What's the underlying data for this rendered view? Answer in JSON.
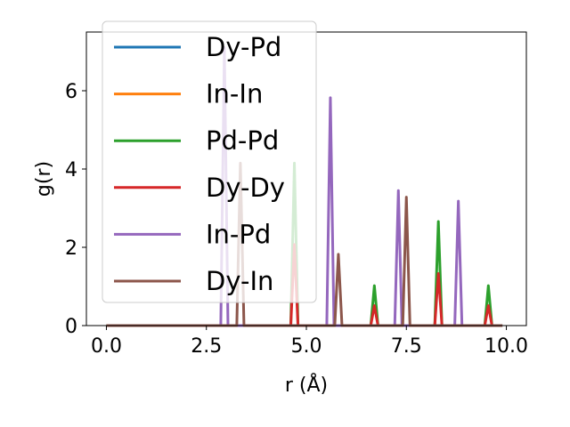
{
  "chart_data": {
    "type": "line",
    "title": "",
    "xlabel": "r (Å)",
    "ylabel": "g(r)",
    "xlim": [
      -0.5,
      10.5
    ],
    "ylim": [
      0,
      7.5
    ],
    "x_ticks": [
      {
        "value": 0.0,
        "label": "0.0"
      },
      {
        "value": 2.5,
        "label": "2.5"
      },
      {
        "value": 5.0,
        "label": "5.0"
      },
      {
        "value": 7.5,
        "label": "7.5"
      },
      {
        "value": 10.0,
        "label": "10.0"
      }
    ],
    "y_ticks": [
      {
        "value": 0,
        "label": "0"
      },
      {
        "value": 2,
        "label": "2"
      },
      {
        "value": 4,
        "label": "4"
      },
      {
        "value": 6,
        "label": "6"
      }
    ],
    "x_range": [
      0.0,
      9.9
    ],
    "peak_halfwidth": 0.09,
    "legend_position": "upper-left",
    "series": [
      {
        "name": "Dy-Pd",
        "color": "#1f77b4",
        "peaks": []
      },
      {
        "name": "In-In",
        "color": "#ff7f0e",
        "peaks": []
      },
      {
        "name": "Pd-Pd",
        "color": "#2ca02c",
        "peaks": [
          {
            "r": 4.7,
            "g": 4.15
          },
          {
            "r": 6.7,
            "g": 1.02
          },
          {
            "r": 8.3,
            "g": 2.66
          },
          {
            "r": 9.55,
            "g": 1.02
          }
        ]
      },
      {
        "name": "Dy-Dy",
        "color": "#d62728",
        "peaks": [
          {
            "r": 4.7,
            "g": 2.07
          },
          {
            "r": 6.7,
            "g": 0.51
          },
          {
            "r": 8.3,
            "g": 1.33
          },
          {
            "r": 9.55,
            "g": 0.51
          }
        ]
      },
      {
        "name": "In-Pd",
        "color": "#9467bd",
        "peaks": [
          {
            "r": 2.95,
            "g": 7.1
          },
          {
            "r": 5.6,
            "g": 5.82
          },
          {
            "r": 7.3,
            "g": 3.45
          },
          {
            "r": 8.8,
            "g": 3.18
          }
        ]
      },
      {
        "name": "Dy-In",
        "color": "#8c564b",
        "peaks": [
          {
            "r": 3.35,
            "g": 4.15
          },
          {
            "r": 5.8,
            "g": 1.82
          },
          {
            "r": 7.5,
            "g": 3.28
          }
        ]
      }
    ]
  }
}
